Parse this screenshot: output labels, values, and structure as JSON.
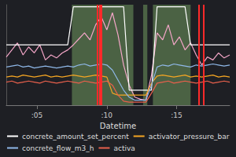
{
  "chart_data": {
    "type": "line",
    "x_label": "Datetime",
    "x": [
      2.8,
      3.2,
      3.6,
      4.0,
      4.4,
      4.8,
      5.2,
      5.6,
      6.0,
      6.4,
      6.8,
      7.2,
      7.6,
      8.0,
      8.4,
      8.8,
      9.2,
      9.6,
      10.0,
      10.4,
      10.8,
      11.2,
      11.6,
      12.0,
      12.4,
      12.8,
      13.2,
      13.6,
      14.0,
      14.4,
      14.8,
      15.2,
      15.6,
      16.0,
      16.4,
      16.8,
      17.2,
      17.6,
      18.0,
      18.4,
      18.8
    ],
    "xlim": [
      2.8,
      18.8
    ],
    "xticks": [
      {
        "value": 5,
        "label": ":05"
      },
      {
        "value": 10,
        "label": ":10"
      },
      {
        "value": 15,
        "label": ":15"
      }
    ],
    "ylim": [
      0,
      100
    ],
    "grid": false,
    "tick_labels": "x",
    "legend": "bottom",
    "series": [
      {
        "color": "#f4a6c8",
        "values": [
          48,
          55,
          62,
          50,
          58,
          52,
          60,
          45,
          50,
          47,
          52,
          55,
          60,
          66,
          72,
          65,
          80,
          88,
          75,
          92,
          70,
          40,
          20,
          8,
          6,
          5,
          30,
          72,
          65,
          80,
          60,
          68,
          55,
          62,
          50,
          40,
          48,
          45,
          52,
          47,
          50
        ]
      },
      {
        "name": "concrete_amount_set_percent",
        "color": "#ffffff",
        "values": [
          60,
          60,
          60,
          60,
          60,
          60,
          60,
          60,
          60,
          60,
          60,
          60,
          98,
          98,
          98,
          98,
          98,
          98,
          98,
          98,
          98,
          98,
          15,
          15,
          15,
          15,
          15,
          98,
          98,
          98,
          98,
          98,
          98,
          60,
          60,
          60,
          60,
          60,
          60,
          60,
          60
        ]
      },
      {
        "name": "activator_pressure_bar",
        "color": "#f5a623",
        "values": [
          28,
          29,
          28,
          30,
          29,
          28,
          29,
          30,
          28,
          29,
          28,
          29,
          30,
          29,
          28,
          29,
          30,
          29,
          28,
          12,
          10,
          10,
          10,
          10,
          10,
          10,
          22,
          29,
          30,
          29,
          28,
          29,
          30,
          28,
          29,
          28,
          29,
          30,
          28,
          29,
          28
        ]
      },
      {
        "name": "concrete_flow_m3_h",
        "color": "#8fb8e8",
        "values": [
          38,
          39,
          40,
          38,
          39,
          37,
          38,
          39,
          38,
          37,
          38,
          39,
          38,
          40,
          41,
          39,
          40,
          41,
          40,
          35,
          25,
          15,
          8,
          5,
          5,
          5,
          20,
          38,
          40,
          39,
          41,
          40,
          39,
          38,
          40,
          39,
          40,
          41,
          40,
          39,
          40
        ]
      },
      {
        "name": "activa",
        "color": "#e8604c",
        "values": [
          23,
          24,
          22,
          23,
          24,
          23,
          22,
          24,
          23,
          22,
          23,
          24,
          23,
          22,
          24,
          23,
          22,
          23,
          24,
          20,
          10,
          4,
          3,
          3,
          3,
          3,
          12,
          22,
          23,
          24,
          22,
          23,
          24,
          23,
          22,
          23,
          24,
          22,
          23,
          24,
          23
        ]
      }
    ],
    "shaded_ranges": [
      [
        7.5,
        11.9
      ],
      [
        12.6,
        12.9
      ],
      [
        13.3,
        16.0
      ]
    ],
    "vertical_lines": [
      9.3,
      9.5,
      9.6,
      16.6,
      16.9
    ]
  }
}
